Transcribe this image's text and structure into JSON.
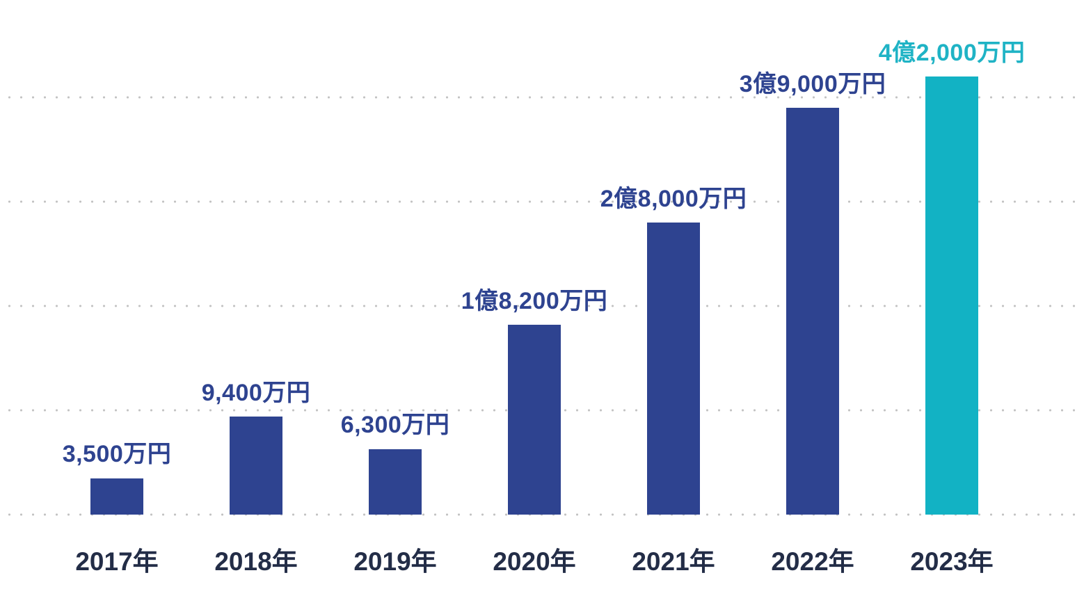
{
  "chart_data": {
    "type": "bar",
    "title": "",
    "unit": "万円",
    "categories": [
      "2017年",
      "2018年",
      "2019年",
      "2020年",
      "2021年",
      "2022年",
      "2023年"
    ],
    "values": [
      3500,
      9400,
      6300,
      18200,
      28000,
      39000,
      42000
    ],
    "value_labels": [
      "3,500万円",
      "9,400万円",
      "6,300万円",
      "1億8,200万円",
      "2億8,000万円",
      "3億9,000万円",
      "4億2,000万円"
    ],
    "highlight_index": 6,
    "colors": {
      "bar": "#2E4390",
      "bar_highlight": "#12B2C4",
      "value_label": "#2E4390",
      "value_label_highlight": "#1FB3C5",
      "axis_label": "#232D47",
      "grid_dot": "#C3C3C3",
      "background": "#FFFFFF"
    },
    "ylim": [
      0,
      45000
    ],
    "gridline_values": [
      0,
      10000,
      20000,
      30000,
      40000
    ],
    "grid_style": "dotted-horizontal",
    "legend": "none",
    "xlabel": "",
    "ylabel": "",
    "y_axis_tick_labels_shown": false,
    "x_axis_tick_labels_shown": true
  }
}
